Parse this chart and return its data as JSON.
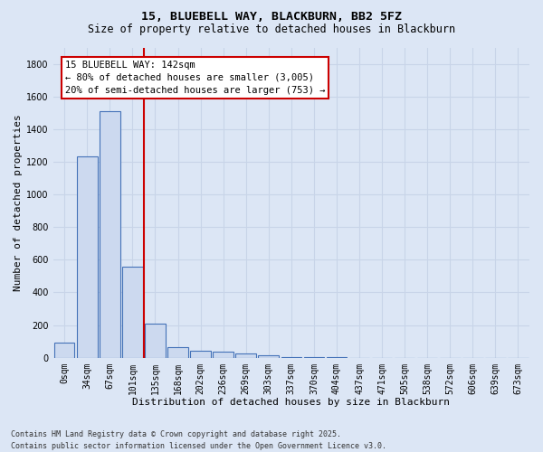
{
  "title_line1": "15, BLUEBELL WAY, BLACKBURN, BB2 5FZ",
  "title_line2": "Size of property relative to detached houses in Blackburn",
  "xlabel": "Distribution of detached houses by size in Blackburn",
  "ylabel": "Number of detached properties",
  "bar_labels": [
    "0sqm",
    "34sqm",
    "67sqm",
    "101sqm",
    "135sqm",
    "168sqm",
    "202sqm",
    "236sqm",
    "269sqm",
    "303sqm",
    "337sqm",
    "370sqm",
    "404sqm",
    "437sqm",
    "471sqm",
    "505sqm",
    "538sqm",
    "572sqm",
    "606sqm",
    "639sqm",
    "673sqm"
  ],
  "bar_values": [
    90,
    1235,
    1510,
    560,
    210,
    65,
    45,
    35,
    28,
    15,
    5,
    3,
    2,
    1,
    0,
    0,
    0,
    0,
    0,
    0,
    0
  ],
  "bar_color": "#ccd9ef",
  "bar_edge_color": "#4472b8",
  "background_color": "#dce6f5",
  "grid_color": "#c8d4e8",
  "vline_color": "#cc0000",
  "annotation_text": "15 BLUEBELL WAY: 142sqm\n← 80% of detached houses are smaller (3,005)\n20% of semi-detached houses are larger (753) →",
  "annotation_box_color": "#cc0000",
  "annotation_bg": "#ffffff",
  "ylim": [
    0,
    1900
  ],
  "yticks": [
    0,
    200,
    400,
    600,
    800,
    1000,
    1200,
    1400,
    1600,
    1800
  ],
  "footer_line1": "Contains HM Land Registry data © Crown copyright and database right 2025.",
  "footer_line2": "Contains public sector information licensed under the Open Government Licence v3.0.",
  "title_fontsize": 9.5,
  "subtitle_fontsize": 8.5,
  "axis_label_fontsize": 8,
  "tick_fontsize": 7,
  "annotation_fontsize": 7.5,
  "footer_fontsize": 6
}
